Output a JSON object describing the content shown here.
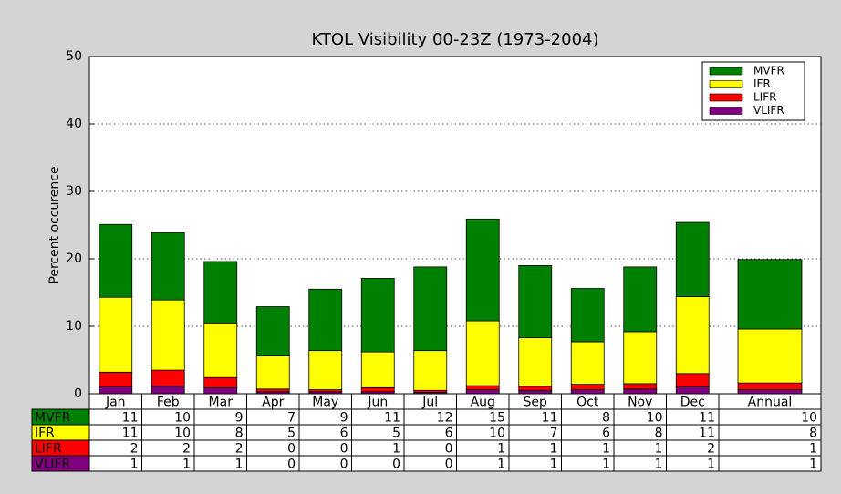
{
  "chart_data": {
    "type": "stacked_bar_table",
    "title": "KTOL Visibility 00-23Z (1973-2004)",
    "y_label": "Percent occurence",
    "categories": [
      "Jan",
      "Feb",
      "Mar",
      "Apr",
      "May",
      "Jun",
      "Jul",
      "Aug",
      "Sep",
      "Oct",
      "Nov",
      "Dec",
      "Annual"
    ],
    "ylim": [
      0,
      50
    ],
    "yticks": [
      0,
      10,
      20,
      30,
      40,
      50
    ],
    "grid": true,
    "legend": "upper right",
    "series": [
      {
        "name": "VLIFR",
        "color": "#800080",
        "values": [
          1.0,
          1.1,
          0.9,
          0.3,
          0.3,
          0.3,
          0.2,
          0.6,
          0.5,
          0.6,
          0.7,
          1.0,
          0.6
        ],
        "value_labels": [
          "1",
          "1",
          "1",
          "0",
          "0",
          "0",
          "0",
          "1",
          "1",
          "1",
          "1",
          "1",
          "1"
        ]
      },
      {
        "name": "LIFR",
        "color": "#ff0000",
        "values": [
          2.2,
          2.4,
          1.5,
          0.4,
          0.3,
          0.6,
          0.3,
          0.6,
          0.6,
          0.8,
          0.8,
          2.0,
          1.0
        ],
        "value_labels": [
          "2",
          "2",
          "2",
          "0",
          "0",
          "1",
          "0",
          "1",
          "1",
          "1",
          "1",
          "2",
          "1"
        ]
      },
      {
        "name": "IFR",
        "color": "#ffff00",
        "values": [
          11.1,
          10.4,
          8.1,
          4.9,
          5.8,
          5.3,
          5.9,
          9.6,
          7.2,
          6.3,
          7.7,
          11.4,
          8.0
        ],
        "value_labels": [
          "11",
          "10",
          "8",
          "5",
          "6",
          "5",
          "6",
          "10",
          "7",
          "6",
          "8",
          "11",
          "8"
        ]
      },
      {
        "name": "MVFR",
        "color": "#008000",
        "values": [
          10.8,
          10.0,
          9.1,
          7.3,
          9.1,
          10.9,
          12.4,
          15.1,
          10.7,
          7.9,
          9.6,
          11.0,
          10.3
        ],
        "value_labels": [
          "11",
          "10",
          "9",
          "7",
          "9",
          "11",
          "12",
          "15",
          "11",
          "8",
          "10",
          "11",
          "10"
        ]
      }
    ]
  }
}
